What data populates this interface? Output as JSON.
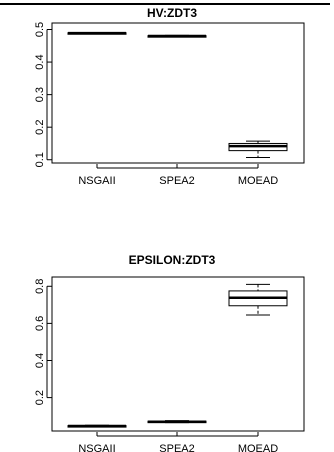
{
  "chart_data": [
    {
      "type": "boxplot",
      "title": "HV:ZDT3",
      "categories": [
        "NSGAII",
        "SPEA2",
        "MOEAD"
      ],
      "ylim": [
        0.09,
        0.52
      ],
      "yticks": [
        "0.1",
        "0.2",
        "0.3",
        "0.4",
        "0.5"
      ],
      "ytick_values": [
        0.1,
        0.2,
        0.3,
        0.4,
        0.5
      ],
      "boxes": [
        {
          "min": 0.487,
          "q1": 0.488,
          "median": 0.489,
          "q3": 0.49,
          "max": 0.491
        },
        {
          "min": 0.477,
          "q1": 0.479,
          "median": 0.48,
          "q3": 0.481,
          "max": 0.482
        },
        {
          "min": 0.107,
          "q1": 0.128,
          "median": 0.142,
          "q3": 0.15,
          "max": 0.157
        }
      ]
    },
    {
      "type": "boxplot",
      "title": "EPSILON:ZDT3",
      "categories": [
        "NSGAII",
        "SPEA2",
        "MOEAD"
      ],
      "ylim": [
        0.02,
        0.85
      ],
      "yticks": [
        "0.2",
        "0.4",
        "0.6",
        "0.8"
      ],
      "ytick_values": [
        0.2,
        0.4,
        0.6,
        0.8
      ],
      "boxes": [
        {
          "min": 0.043,
          "q1": 0.045,
          "median": 0.047,
          "q3": 0.049,
          "max": 0.051
        },
        {
          "min": 0.065,
          "q1": 0.068,
          "median": 0.07,
          "q3": 0.073,
          "max": 0.076
        },
        {
          "min": 0.645,
          "q1": 0.695,
          "median": 0.738,
          "q3": 0.775,
          "max": 0.81
        }
      ]
    }
  ]
}
